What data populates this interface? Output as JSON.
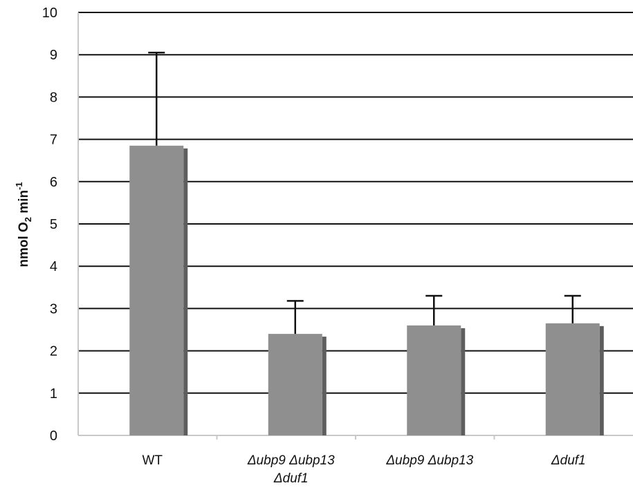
{
  "chart_data": {
    "type": "bar",
    "categories": [
      {
        "lines": [
          "WT"
        ],
        "italic": false
      },
      {
        "lines": [
          "Δubp9 Δubp13",
          "Δduf1"
        ],
        "italic": true
      },
      {
        "lines": [
          "Δubp9 Δubp13"
        ],
        "italic": true
      },
      {
        "lines": [
          "Δduf1"
        ],
        "italic": true
      }
    ],
    "values": [
      6.85,
      2.4,
      2.6,
      2.65
    ],
    "error_upper": [
      9.05,
      3.18,
      3.3,
      3.3
    ],
    "ylabel": {
      "main": "nmol O",
      "sub": "2",
      "mid": " min",
      "sup": "-1"
    },
    "ylim": [
      0,
      10
    ],
    "yticks": [
      "0",
      "1",
      "2",
      "3",
      "4",
      "5",
      "6",
      "7",
      "8",
      "9",
      "10"
    ],
    "grid": true,
    "colors": {
      "bar": "#8f8f8f",
      "bar_shadow": "#5e5e5e",
      "grid": "#111111",
      "axis": "#c8c8c8"
    }
  }
}
